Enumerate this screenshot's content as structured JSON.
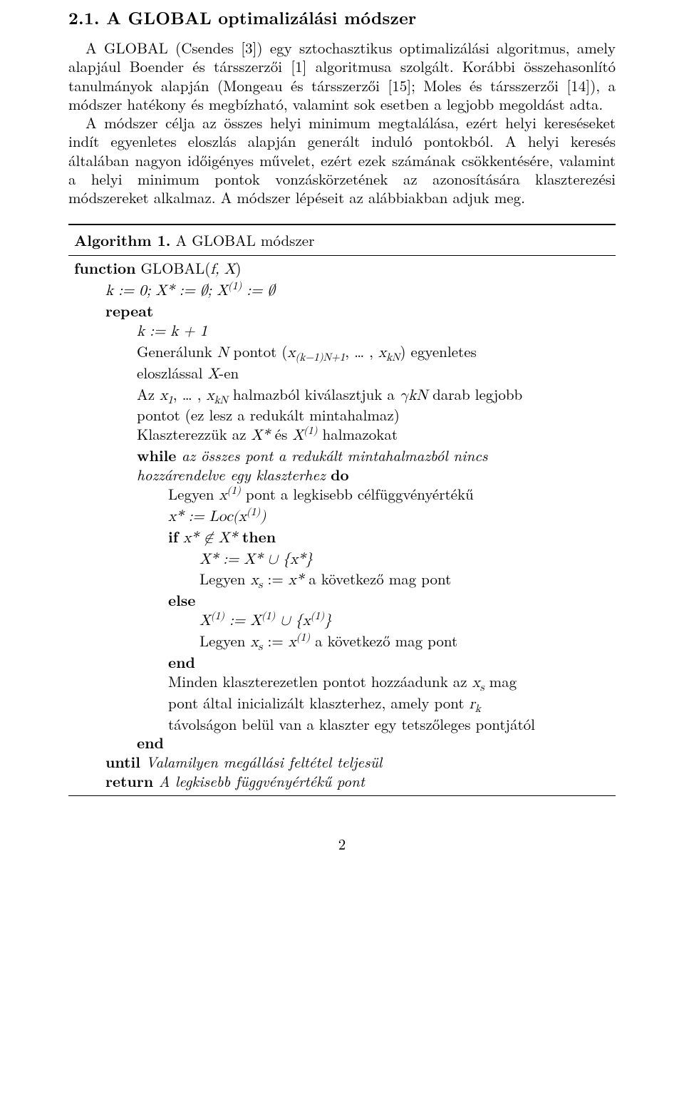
{
  "heading": "2.1. A GLOBAL optimalizálási módszer",
  "para1": "A GLOBAL (Csendes [3]) egy sztochasztikus optimalizálási algoritmus, amely alapjául Boender és társszerzői [1] algoritmusa szolgált. Korábbi összehasonlító tanulmányok alapján (Mongeau és társszerzői [15]; Moles és társszerzői [14]), a módszer hatékony és megbízható, valamint sok esetben a legjobb megoldást adta.",
  "para2": "A módszer célja az összes helyi minimum megtalálása, ezért helyi kereséseket indít egyenletes eloszlás alapján generált induló pontokból. A helyi keresés általában nagyon időigényes művelet, ezért ezek számának csökkentésére, valamint a helyi minimum pontok vonzáskörzetének az azonosítására klaszterezési módszereket alkalmaz. A módszer lépéseit az alábbiakban adjuk meg.",
  "algo": {
    "title_bold": "Algorithm 1.",
    "title_tail": " A GLOBAL módszer",
    "kw": {
      "function": "function",
      "repeat": "repeat",
      "while": "while",
      "do": "do",
      "if": "if",
      "then": "then",
      "else": "else",
      "end": "end",
      "until": "until",
      "return": "return"
    },
    "lines": {
      "func_head_pre": " GLOBAL(",
      "func_head_args": "f, X",
      "func_head_post": ")",
      "init": "k := 0; X* := ∅; X⁽¹⁾ := ∅",
      "kplus": "k := k + 1",
      "gen_a": "Generálunk ",
      "gen_N": "N",
      "gen_b": " pontot (",
      "gen_x1": "x",
      "gen_sub1": "(k−1)N+1",
      "gen_dots": ", … , ",
      "gen_x2": "x",
      "gen_sub2": "kN",
      "gen_c": ") egyenletes",
      "gen_d": "eloszlással ",
      "gen_X": "X",
      "gen_e": "-en",
      "az_a": "Az ",
      "az_x1": "x",
      "az_s1": "1",
      "az_dots": ", … , ",
      "az_x2": "x",
      "az_s2": "kN",
      "az_b": " halmazból kiválasztjuk a ",
      "az_gkN": "γkN",
      "az_c": " darab legjobb",
      "az_d": "pontot (ez lesz a redukált mintahalmaz)",
      "klasz_a": "Klaszterezzük az ",
      "klasz_Xs": "X*",
      "klasz_es": " és ",
      "klasz_X1": "X⁽¹⁾",
      "klasz_b": " halmazokat",
      "while_a": " az összes pont a redukált mintahalmazból nincs",
      "while_b": "hozzárendelve egy klaszterhez ",
      "legyen1_a": "Legyen ",
      "legyen1_x": "x⁽¹⁾",
      "legyen1_b": " pont a legkisebb célfüggvényértékű",
      "xstar_a": "x* := Loc(x⁽¹⁾)",
      "if_a": " x* ∉ X* ",
      "union_a": "X* := X* ∪ {x*}",
      "legyen2_a": "Legyen ",
      "legyen2_xs": "x",
      "legyen2_sub": "s",
      "legyen2_b": " := ",
      "legyen2_xstar": "x*",
      "legyen2_c": " a következő mag pont",
      "union_b": "X⁽¹⁾ := X⁽¹⁾ ∪ {x⁽¹⁾}",
      "legyen3_a": "Legyen ",
      "legyen3_xs": "x",
      "legyen3_sub": "s",
      "legyen3_b": " := ",
      "legyen3_x1": "x⁽¹⁾",
      "legyen3_c": " a következő mag pont",
      "minden_a": "Minden klaszterezetlen pontot hozzáadunk az ",
      "minden_xs": "x",
      "minden_sub": "s",
      "minden_b": " mag",
      "minden_c": "pont által inicializált klaszterhez, amely pont ",
      "minden_rk": "r",
      "minden_rksub": "k",
      "minden_d": "távolságon belül van a klaszter egy tetszőleges pontjától",
      "until_a": " Valamilyen megállási feltétel teljesül",
      "return_a": " A legkisebb függvényértékű pont"
    }
  },
  "pagenum": "2"
}
